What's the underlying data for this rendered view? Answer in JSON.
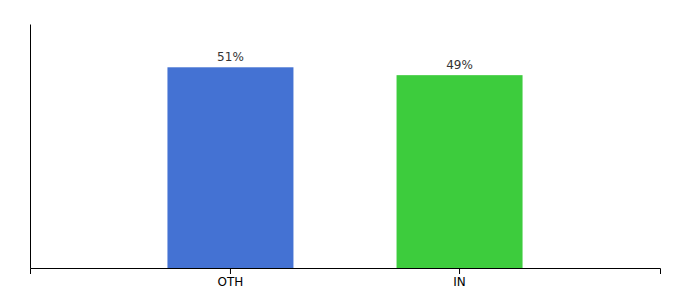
{
  "chart_data": {
    "type": "bar",
    "categories": [
      "OTH",
      "IN"
    ],
    "values": [
      51,
      49
    ],
    "colors": [
      "#4472d3",
      "#3dcc3d"
    ],
    "value_labels": [
      "51%",
      "49%"
    ],
    "data_labels": true,
    "ylim": [
      0,
      62
    ],
    "yticks": [],
    "tick_labels": "x"
  }
}
